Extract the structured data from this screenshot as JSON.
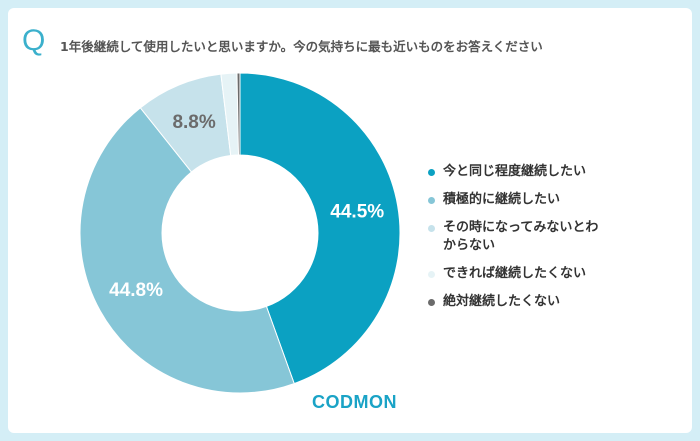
{
  "chart_data": {
    "type": "donut",
    "question_mark": "Q",
    "title": "1年後継続して使用したいと思いますか。今の気持ちに最も近いものをお答えください",
    "categories": [
      "今と同じ程度継続したい",
      "積極的に継続したい",
      "その時になってみないとわからない",
      "できれば継続したくない",
      "絶対継続したくない"
    ],
    "values": [
      44.5,
      44.8,
      8.8,
      1.6,
      0.3
    ],
    "value_labels": [
      "44.5%",
      "44.8%",
      "8.8%",
      null,
      null
    ],
    "colors": [
      "#0ba1c2",
      "#86c6d7",
      "#c6e2eb",
      "#e6f3f6",
      "#6b6b6b"
    ],
    "label_colors": [
      "#ffffff",
      "#ffffff",
      "#6b6b6b",
      null,
      null
    ],
    "legend_position": "right",
    "logo": "CODMON"
  }
}
